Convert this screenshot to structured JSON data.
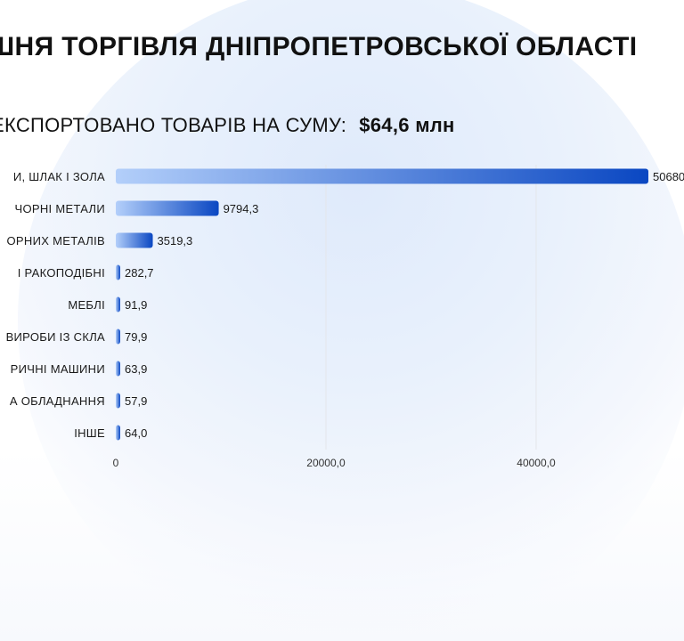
{
  "header": {
    "title": "ШНЯ ТОРГІВЛЯ ДНІПРОПЕТРОВСЬКОЇ ОБЛАСТІ",
    "subtitle_prefix": "ЕКСПОРТОВАНО ТОВАРІВ НА СУМУ:",
    "subtitle_amount": "$64,6 млн"
  },
  "colors": {
    "bar_start": "#b3cffa",
    "bar_end": "#0a47c2",
    "grid": "#e4e6ea",
    "text": "#1a1a1a"
  },
  "chart_data": {
    "type": "bar",
    "orientation": "horizontal",
    "categories": [
      "И, ШЛАК І ЗОЛА",
      "ЧОРНІ МЕТАЛИ",
      "ОРНИХ МЕТАЛІВ",
      "І РАКОПОДІБНІ",
      "МЕБЛІ",
      "ВИРОБИ ІЗ СКЛА",
      "РИЧНІ МАШИНИ",
      "А ОБЛАДНАННЯ",
      "ІНШЕ"
    ],
    "values": [
      50680,
      9794.3,
      3519.3,
      282.7,
      91.9,
      79.9,
      63.9,
      57.9,
      64.0
    ],
    "value_labels": [
      "50680",
      "9794,3",
      "3519,3",
      "282,7",
      "91,9",
      "79,9",
      "63,9",
      "57,9",
      "64,0"
    ],
    "x_ticks": [
      0,
      20000,
      40000
    ],
    "x_tick_labels": [
      "0",
      "20000,0",
      "40000,0"
    ],
    "xlim": [
      0,
      60000
    ],
    "grid": true,
    "legend": "none"
  }
}
